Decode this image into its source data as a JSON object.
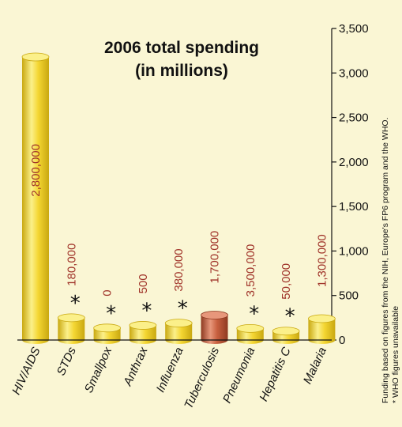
{
  "chart_data": {
    "type": "bar",
    "title_lines": [
      "2006 total spending",
      "(in millions)"
    ],
    "categories": [
      "HIV/AIDS",
      "STDs",
      "Smallpox",
      "Anthrax",
      "Influenza",
      "Tuberculosis",
      "Pneumonia",
      "Hepatitis C",
      "Malaria"
    ],
    "values": [
      3180,
      250,
      135,
      165,
      190,
      280,
      130,
      100,
      240
    ],
    "data_labels": [
      "2,800,000",
      "180,000",
      "0",
      "500",
      "380,000",
      "1,700,000",
      "3,500,000",
      "50,000",
      "1,300,000"
    ],
    "who_unavailable": [
      false,
      true,
      true,
      true,
      true,
      false,
      true,
      true,
      false
    ],
    "highlight": [
      false,
      false,
      false,
      false,
      false,
      true,
      false,
      false,
      false
    ],
    "ylim": [
      0,
      3500
    ],
    "yticks": [
      0,
      500,
      1000,
      1500,
      2000,
      2500,
      3000,
      3500
    ],
    "ytick_labels": [
      "0",
      "500",
      "1,000",
      "1,500",
      "2,000",
      "2,500",
      "3,000",
      "3,500"
    ],
    "y_axis_position": "right",
    "grid": false,
    "legend": "none",
    "colors": {
      "background": "#faf6d4",
      "bar": "#f4d632",
      "bar_dark": "#c9a810",
      "bar_light": "#fbf08a",
      "highlight_bar": "#c8603f",
      "highlight_dark": "#8e3a22",
      "highlight_light": "#e7977b",
      "data_label": "#a0342a"
    }
  },
  "notes": {
    "source": "Funding based on figures from the NIH, Europe's FP6 program and the WHO.",
    "footnote": "* WHO figures unavailable",
    "marker": "*"
  }
}
